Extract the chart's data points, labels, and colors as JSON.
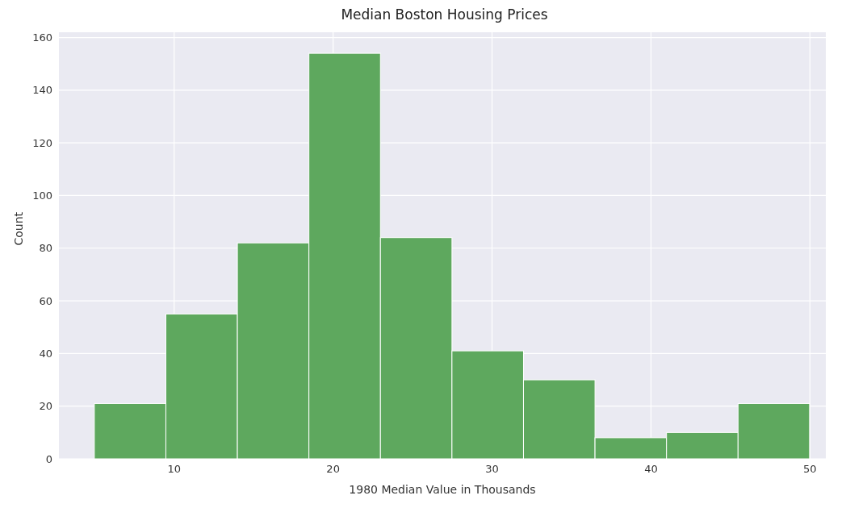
{
  "chart_data": {
    "type": "histogram",
    "title": "Median Boston Housing Prices",
    "xlabel": "1980 Median Value in Thousands",
    "ylabel": "Count",
    "bins": [
      5,
      9.5,
      14,
      18.5,
      23,
      27.5,
      32,
      36.5,
      41,
      45.5,
      50
    ],
    "values": [
      21,
      55,
      82,
      154,
      84,
      41,
      30,
      8,
      10,
      21
    ],
    "color": "#5ea85e",
    "xlim": [
      2.75,
      51
    ],
    "xticks": [
      10,
      20,
      30,
      40,
      50
    ],
    "ylim": [
      0,
      162
    ],
    "yticks": [
      0,
      20,
      40,
      60,
      80,
      100,
      120,
      140,
      160
    ],
    "grid": true
  }
}
